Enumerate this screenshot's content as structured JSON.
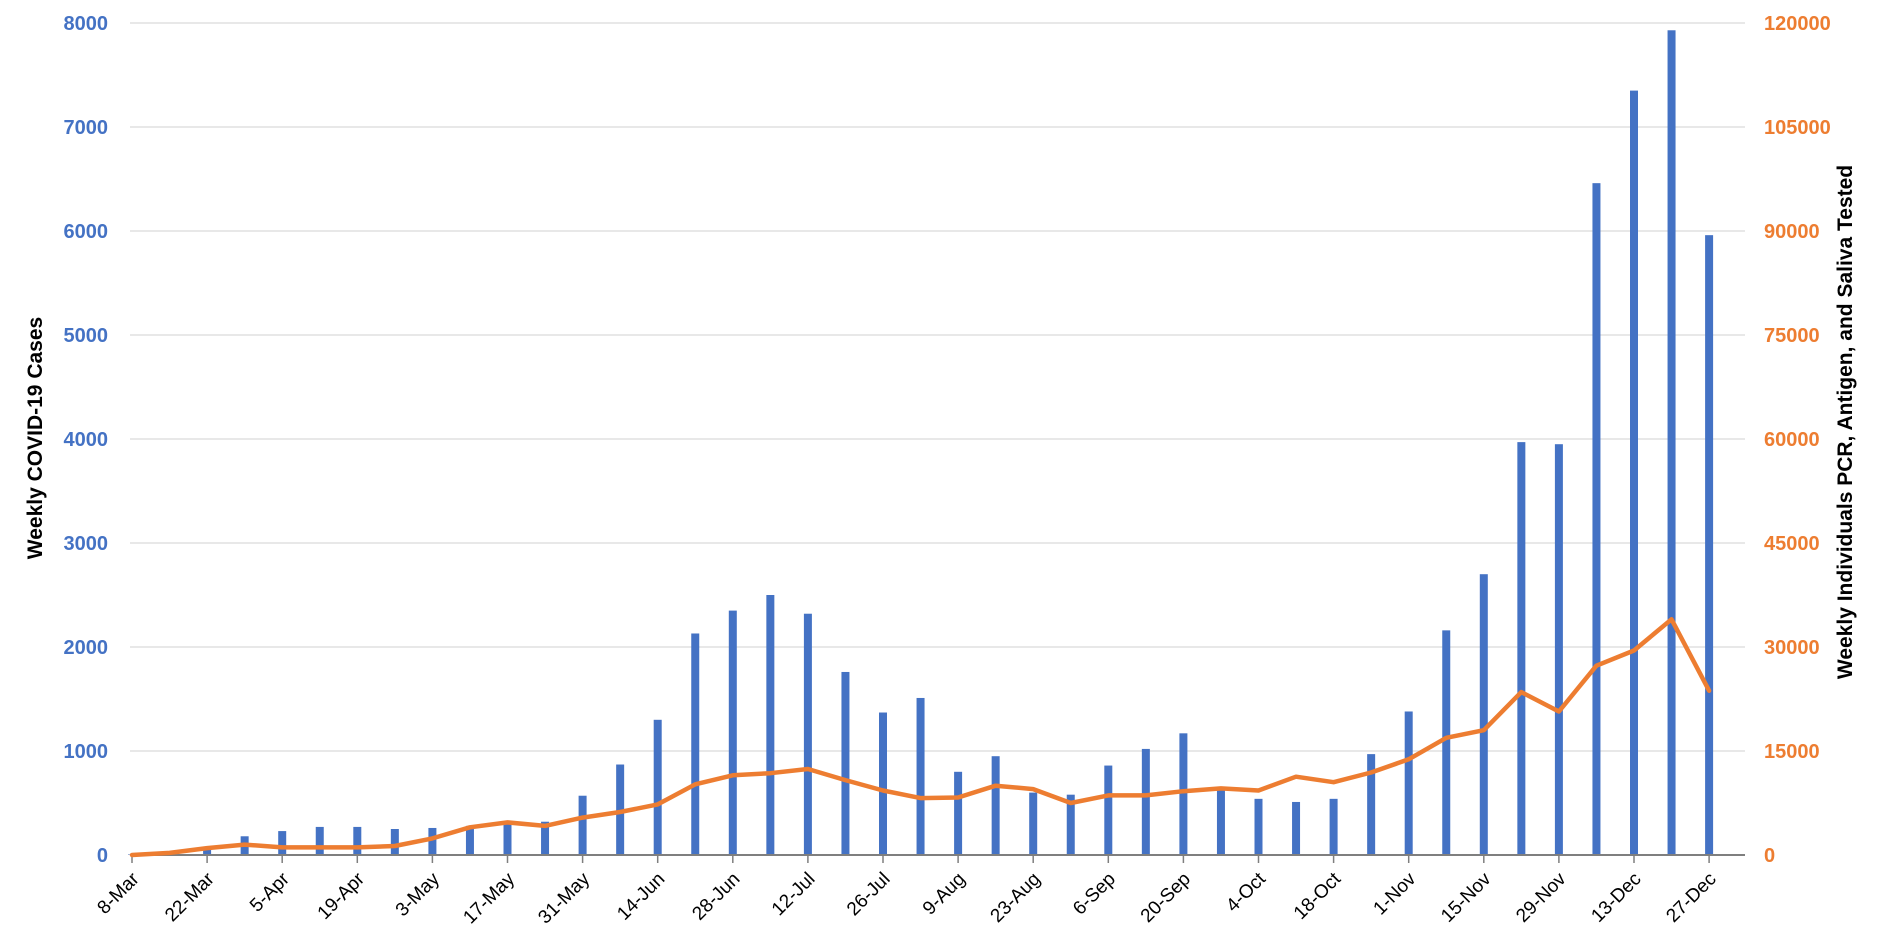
{
  "chart_data": {
    "type": "bar",
    "colors": {
      "bars": "#4472c4",
      "line": "#ed7d31",
      "grid": "#d9d9d9",
      "axis": "#7f7f7f"
    },
    "y_left": {
      "label": "Weekly COVID-19 Cases",
      "range": [
        0,
        8000
      ],
      "ticks": [
        "0",
        "1000",
        "2000",
        "3000",
        "4000",
        "5000",
        "6000",
        "7000",
        "8000"
      ]
    },
    "y_right": {
      "label": "Weekly Individuals PCR, Antigen, and Saliva Tested",
      "range": [
        0,
        120000
      ],
      "ticks": [
        "0",
        "15000",
        "30000",
        "45000",
        "60000",
        "75000",
        "90000",
        "105000",
        "120000"
      ]
    },
    "x_tick_labels": [
      "8-Mar",
      "22-Mar",
      "5-Apr",
      "19-Apr",
      "3-May",
      "17-May",
      "31-May",
      "14-Jun",
      "28-Jun",
      "12-Jul",
      "26-Jul",
      "9-Aug",
      "23-Aug",
      "6-Sep",
      "20-Sep",
      "4-Oct",
      "18-Oct",
      "1-Nov",
      "15-Nov",
      "29-Nov",
      "13-Dec",
      "27-Dec"
    ],
    "categories": [
      "8-Mar",
      "15-Mar",
      "22-Mar",
      "29-Mar",
      "5-Apr",
      "12-Apr",
      "19-Apr",
      "26-Apr",
      "3-May",
      "10-May",
      "17-May",
      "24-May",
      "31-May",
      "7-Jun",
      "14-Jun",
      "21-Jun",
      "28-Jun",
      "5-Jul",
      "12-Jul",
      "19-Jul",
      "26-Jul",
      "2-Aug",
      "9-Aug",
      "16-Aug",
      "23-Aug",
      "30-Aug",
      "6-Sep",
      "13-Sep",
      "20-Sep",
      "27-Sep",
      "4-Oct",
      "11-Oct",
      "18-Oct",
      "25-Oct",
      "1-Nov",
      "8-Nov",
      "15-Nov",
      "22-Nov",
      "29-Nov",
      "6-Dec",
      "13-Dec",
      "20-Dec",
      "27-Dec"
    ],
    "series": [
      {
        "name": "Weekly COVID-19 Cases",
        "type": "bar",
        "axis": "left",
        "values": [
          5,
          20,
          70,
          180,
          230,
          270,
          270,
          250,
          260,
          280,
          300,
          320,
          570,
          870,
          1300,
          2130,
          2350,
          2500,
          2320,
          1760,
          1370,
          1510,
          800,
          950,
          600,
          580,
          860,
          1020,
          1170,
          640,
          540,
          510,
          540,
          970,
          1380,
          2160,
          2700,
          3970,
          3950,
          6460,
          7350,
          7930,
          5960
        ]
      },
      {
        "name": "Weekly Individuals PCR, Antigen, and Saliva Tested",
        "type": "line",
        "axis": "right",
        "values": [
          0,
          300,
          1000,
          1500,
          1100,
          1100,
          1100,
          1300,
          2400,
          4000,
          4700,
          4200,
          5400,
          6200,
          7300,
          10200,
          11500,
          11800,
          12400,
          10800,
          9300,
          8200,
          8300,
          10000,
          9500,
          7500,
          8600,
          8600,
          9200,
          9600,
          9300,
          11300,
          10500,
          11900,
          13800,
          16900,
          18000,
          23500,
          20700,
          27300,
          29500,
          34000,
          23700
        ]
      }
    ]
  }
}
